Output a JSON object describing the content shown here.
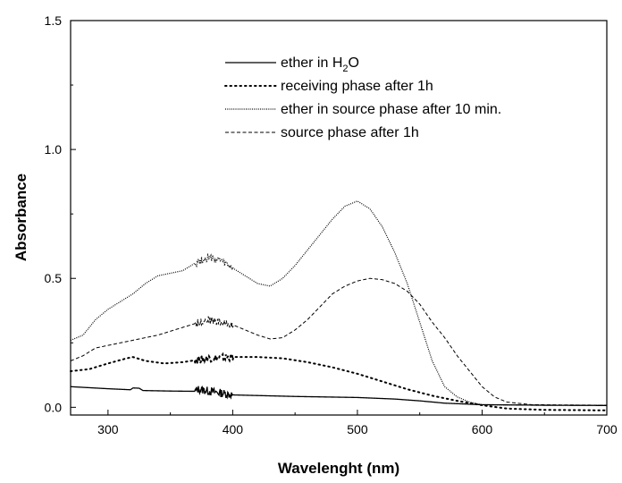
{
  "chart_data": {
    "type": "line",
    "xlabel": "Wavelenght (nm)",
    "ylabel": "Absorbance",
    "xlim": [
      270,
      700
    ],
    "ylim": [
      -0.03,
      1.5
    ],
    "x_ticks": [
      300,
      400,
      500,
      600,
      700
    ],
    "y_ticks": [
      0.0,
      0.5,
      1.0,
      1.5
    ],
    "x_tick_labels": [
      "300",
      "400",
      "500",
      "600",
      "700"
    ],
    "y_tick_labels": [
      "0.0",
      "0.5",
      "1.0",
      "1.5"
    ],
    "grid": false,
    "legend_position": "top-center",
    "series": [
      {
        "name": "ether in H2O",
        "legend_main": "ether in H",
        "legend_sub": "2",
        "legend_tail": "O",
        "style": "solid",
        "noise_range": [
          370,
          400
        ],
        "points": [
          [
            270,
            0.08
          ],
          [
            300,
            0.072
          ],
          [
            318,
            0.068
          ],
          [
            320,
            0.075
          ],
          [
            325,
            0.074
          ],
          [
            328,
            0.065
          ],
          [
            350,
            0.063
          ],
          [
            370,
            0.062
          ],
          [
            372,
            0.07
          ],
          [
            400,
            0.048
          ],
          [
            450,
            0.042
          ],
          [
            500,
            0.038
          ],
          [
            530,
            0.032
          ],
          [
            550,
            0.025
          ],
          [
            570,
            0.016
          ],
          [
            600,
            0.01
          ],
          [
            650,
            0.008
          ],
          [
            700,
            0.007
          ]
        ]
      },
      {
        "name": "receiving phase after 1h",
        "legend_main": "receiving phase after 1h",
        "style": "dotted",
        "noise_range": [
          370,
          400
        ],
        "points": [
          [
            270,
            0.14
          ],
          [
            285,
            0.148
          ],
          [
            300,
            0.17
          ],
          [
            315,
            0.19
          ],
          [
            320,
            0.195
          ],
          [
            330,
            0.18
          ],
          [
            345,
            0.17
          ],
          [
            360,
            0.175
          ],
          [
            380,
            0.19
          ],
          [
            400,
            0.195
          ],
          [
            420,
            0.195
          ],
          [
            440,
            0.19
          ],
          [
            460,
            0.175
          ],
          [
            480,
            0.155
          ],
          [
            500,
            0.13
          ],
          [
            520,
            0.1
          ],
          [
            540,
            0.07
          ],
          [
            560,
            0.045
          ],
          [
            580,
            0.025
          ],
          [
            600,
            0.008
          ],
          [
            620,
            -0.005
          ],
          [
            650,
            -0.01
          ],
          [
            700,
            -0.012
          ]
        ]
      },
      {
        "name": "ether in source phase after 10 min.",
        "legend_main": "ether in source phase after 10 min.",
        "style": "densedot",
        "noise_range": [
          370,
          400
        ],
        "points": [
          [
            270,
            0.26
          ],
          [
            280,
            0.28
          ],
          [
            290,
            0.34
          ],
          [
            300,
            0.38
          ],
          [
            310,
            0.41
          ],
          [
            320,
            0.44
          ],
          [
            330,
            0.48
          ],
          [
            340,
            0.51
          ],
          [
            350,
            0.52
          ],
          [
            360,
            0.53
          ],
          [
            370,
            0.56
          ],
          [
            380,
            0.58
          ],
          [
            390,
            0.57
          ],
          [
            400,
            0.54
          ],
          [
            410,
            0.51
          ],
          [
            420,
            0.48
          ],
          [
            430,
            0.47
          ],
          [
            440,
            0.5
          ],
          [
            450,
            0.55
          ],
          [
            460,
            0.61
          ],
          [
            470,
            0.67
          ],
          [
            480,
            0.73
          ],
          [
            490,
            0.78
          ],
          [
            500,
            0.8
          ],
          [
            510,
            0.77
          ],
          [
            520,
            0.7
          ],
          [
            530,
            0.6
          ],
          [
            540,
            0.48
          ],
          [
            550,
            0.33
          ],
          [
            560,
            0.18
          ],
          [
            570,
            0.08
          ],
          [
            580,
            0.04
          ],
          [
            590,
            0.02
          ],
          [
            600,
            0.01
          ],
          [
            650,
            0.008
          ],
          [
            700,
            0.008
          ]
        ]
      },
      {
        "name": "source phase after 1h",
        "legend_main": "source phase after 1h",
        "style": "dashed",
        "noise_range": [
          370,
          400
        ],
        "points": [
          [
            270,
            0.18
          ],
          [
            280,
            0.2
          ],
          [
            290,
            0.23
          ],
          [
            300,
            0.24
          ],
          [
            320,
            0.26
          ],
          [
            340,
            0.28
          ],
          [
            360,
            0.31
          ],
          [
            380,
            0.34
          ],
          [
            400,
            0.32
          ],
          [
            410,
            0.3
          ],
          [
            420,
            0.28
          ],
          [
            430,
            0.265
          ],
          [
            440,
            0.27
          ],
          [
            450,
            0.3
          ],
          [
            460,
            0.34
          ],
          [
            470,
            0.39
          ],
          [
            480,
            0.44
          ],
          [
            490,
            0.47
          ],
          [
            500,
            0.49
          ],
          [
            510,
            0.5
          ],
          [
            520,
            0.495
          ],
          [
            530,
            0.48
          ],
          [
            540,
            0.45
          ],
          [
            550,
            0.4
          ],
          [
            560,
            0.33
          ],
          [
            570,
            0.27
          ],
          [
            580,
            0.2
          ],
          [
            590,
            0.14
          ],
          [
            600,
            0.08
          ],
          [
            610,
            0.04
          ],
          [
            620,
            0.02
          ],
          [
            640,
            0.01
          ],
          [
            700,
            0.008
          ]
        ]
      }
    ]
  }
}
